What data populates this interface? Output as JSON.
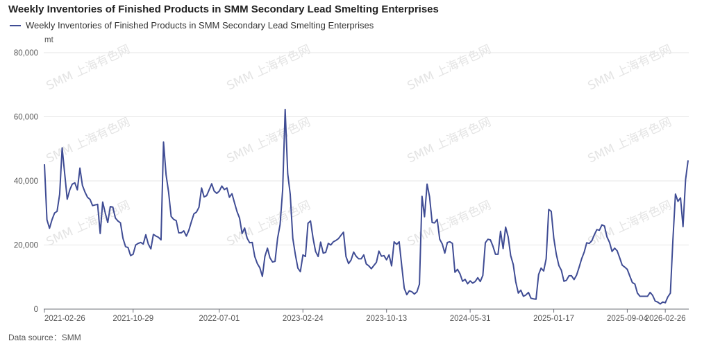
{
  "chart_data": {
    "type": "line",
    "title": "Weekly Inventories of Finished Products in SMM Secondary Lead Smelting Enterprises",
    "ylabel": "mt",
    "xlabel": "",
    "ylim": [
      0,
      80000
    ],
    "y_ticks": [
      {
        "value": 0,
        "label": "0"
      },
      {
        "value": 20000,
        "label": "20,000"
      },
      {
        "value": 40000,
        "label": "40,000"
      },
      {
        "value": 60000,
        "label": "60,000"
      },
      {
        "value": 80000,
        "label": "80,000"
      }
    ],
    "x_ticks": [
      {
        "index": 0,
        "label": "2021-02-26"
      },
      {
        "index": 35,
        "label": "2021-10-29"
      },
      {
        "index": 69,
        "label": "2022-07-01"
      },
      {
        "index": 102,
        "label": "2023-02-24"
      },
      {
        "index": 135,
        "label": "2023-10-13"
      },
      {
        "index": 168,
        "label": "2024-05-31"
      },
      {
        "index": 201,
        "label": "2025-01-17"
      },
      {
        "index": 230,
        "label": "2025-09-04"
      },
      {
        "index": 245,
        "label": "2026-02-26"
      }
    ],
    "grid": true,
    "legend_position": "top-left",
    "series": [
      {
        "name": "Weekly Inventories of Finished Products in SMM Secondary Lead Smelting Enterprises",
        "color": "#3f4c94",
        "values": [
          45200,
          27900,
          25200,
          27900,
          30000,
          30500,
          35800,
          50300,
          42200,
          34300,
          37200,
          39000,
          39400,
          37200,
          44000,
          38600,
          36500,
          34900,
          34200,
          32300,
          32500,
          32700,
          23600,
          33400,
          30000,
          27000,
          32000,
          31800,
          28400,
          27500,
          26900,
          22100,
          19500,
          19200,
          16700,
          17100,
          20000,
          20500,
          20800,
          20300,
          23200,
          20300,
          18800,
          23300,
          22800,
          22400,
          21600,
          52100,
          41900,
          36500,
          28900,
          28000,
          27600,
          23800,
          23800,
          24400,
          22800,
          24600,
          27300,
          29700,
          30300,
          31800,
          37800,
          35000,
          35400,
          37200,
          39100,
          36800,
          36100,
          36800,
          38400,
          37300,
          37800,
          34900,
          36000,
          33200,
          30400,
          28400,
          23600,
          25300,
          22100,
          20700,
          20800,
          16400,
          14200,
          12900,
          10200,
          16400,
          19000,
          16000,
          14700,
          14900,
          22100,
          26400,
          37200,
          62300,
          42200,
          35800,
          22100,
          17100,
          12800,
          11700,
          16900,
          16400,
          26800,
          27500,
          22100,
          18000,
          16400,
          20900,
          17500,
          17700,
          20500,
          20000,
          21000,
          21400,
          22000,
          23000,
          24000,
          16400,
          14200,
          15300,
          17800,
          16500,
          15700,
          15700,
          16900,
          14100,
          13500,
          12600,
          13600,
          14600,
          18100,
          16500,
          16700,
          15400,
          16900,
          13500,
          21000,
          20200,
          21000,
          13500,
          6500,
          4500,
          5700,
          5400,
          4700,
          5400,
          7800,
          35200,
          28800,
          39000,
          35000,
          27000,
          26900,
          28000,
          21800,
          20300,
          17500,
          20800,
          21000,
          20500,
          11500,
          12400,
          11000,
          8700,
          9300,
          7900,
          8800,
          8100,
          8600,
          9800,
          8600,
          10500,
          20700,
          21800,
          21600,
          19600,
          17100,
          17100,
          24300,
          18900,
          25600,
          22500,
          16700,
          13900,
          8500,
          5000,
          5900,
          4000,
          4400,
          5200,
          3400,
          3200,
          3100,
          10800,
          12800,
          11900,
          15700,
          31100,
          30500,
          22100,
          17100,
          13600,
          12100,
          8700,
          9000,
          10400,
          10400,
          9200,
          10600,
          13100,
          15700,
          17800,
          20700,
          20500,
          21300,
          23200,
          24800,
          24600,
          26300,
          25900,
          22500,
          20800,
          18000,
          19000,
          18200,
          16000,
          13700,
          13100,
          12400,
          10300,
          8300,
          7800,
          5000,
          4000,
          4000,
          4000,
          4000,
          5200,
          4300,
          2500,
          2200,
          1600,
          2200,
          2000,
          3800,
          5000,
          21400,
          35900,
          33600,
          34700,
          25700,
          40400,
          46400
        ]
      }
    ]
  },
  "legend_label": "Weekly Inventories of Finished Products in SMM Secondary Lead Smelting Enterprises",
  "source": "Data source：SMM",
  "watermark": "SMM 上海有色网"
}
